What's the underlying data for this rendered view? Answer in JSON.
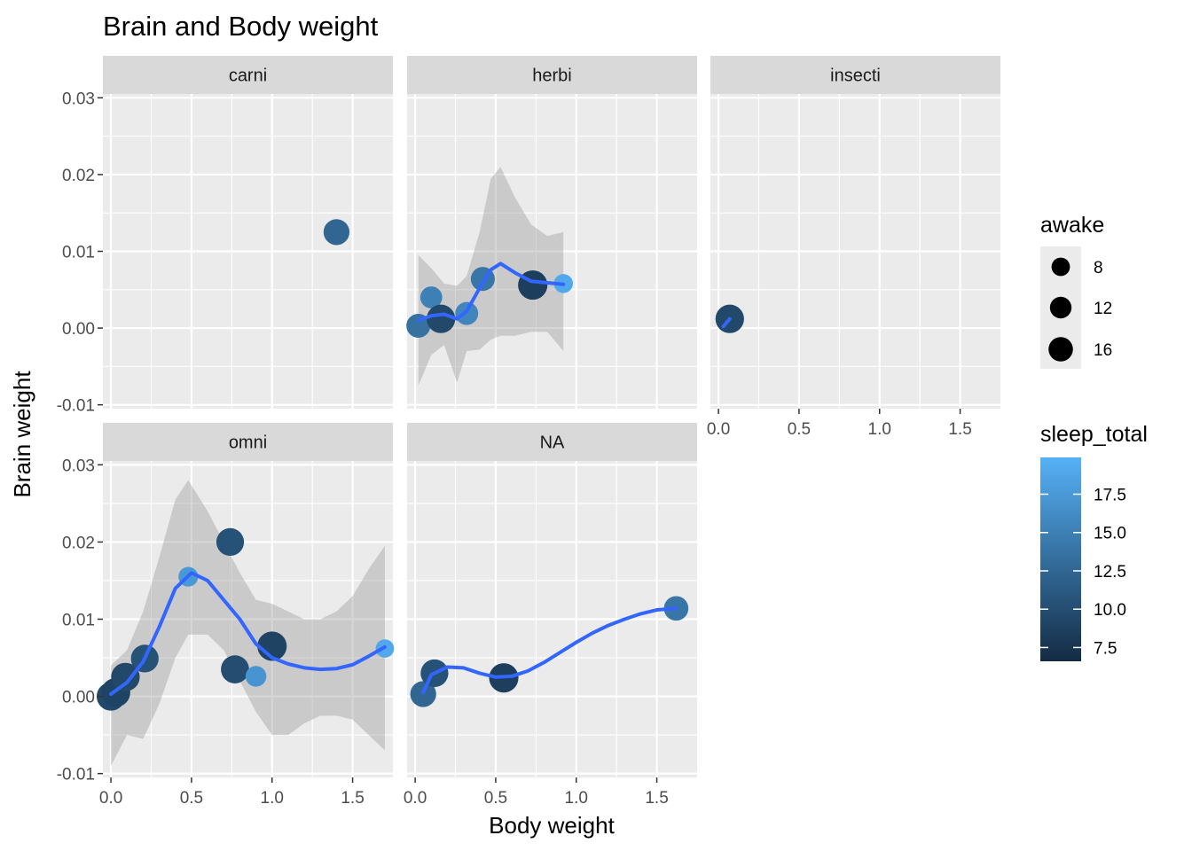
{
  "chart_data": {
    "type": "scatter",
    "title": "Brain and Body weight",
    "xlabel": "Body weight",
    "ylabel": "Brain weight",
    "xlim": [
      -0.05,
      1.75
    ],
    "ylim": [
      -0.0105,
      0.0305
    ],
    "x_ticks": [
      0.0,
      0.5,
      1.0,
      1.5
    ],
    "x_tick_labels": [
      "0.0",
      "0.5",
      "1.0",
      "1.5"
    ],
    "y_ticks": [
      -0.01,
      0.0,
      0.01,
      0.02,
      0.03
    ],
    "y_tick_labels": [
      "-0.01",
      "0.00",
      "0.01",
      "0.02",
      "0.03"
    ],
    "grid": true,
    "legend_position": "right",
    "facets": [
      {
        "label": "carni",
        "points": [
          {
            "x": 1.4,
            "y": 0.0125,
            "awake": 11.5,
            "sleep_total": 12.5
          }
        ],
        "smooth": [],
        "band": []
      },
      {
        "label": "herbi",
        "points": [
          {
            "x": 0.02,
            "y": 0.0003,
            "awake": 9.5,
            "sleep_total": 13.5
          },
          {
            "x": 0.1,
            "y": 0.004,
            "awake": 7.5,
            "sleep_total": 15.0
          },
          {
            "x": 0.16,
            "y": 0.0012,
            "awake": 14.5,
            "sleep_total": 9.5
          },
          {
            "x": 0.32,
            "y": 0.0019,
            "awake": 8.5,
            "sleep_total": 15.5
          },
          {
            "x": 0.42,
            "y": 0.0064,
            "awake": 9.5,
            "sleep_total": 14.0
          },
          {
            "x": 0.73,
            "y": 0.0056,
            "awake": 15.5,
            "sleep_total": 8.5
          },
          {
            "x": 0.92,
            "y": 0.0058,
            "awake": 5.0,
            "sleep_total": 19.0
          }
        ],
        "smooth": [
          [
            0.02,
            0.001
          ],
          [
            0.1,
            0.0016
          ],
          [
            0.18,
            0.0018
          ],
          [
            0.26,
            0.0012
          ],
          [
            0.32,
            0.0022
          ],
          [
            0.4,
            0.0052
          ],
          [
            0.47,
            0.0076
          ],
          [
            0.53,
            0.0084
          ],
          [
            0.62,
            0.0072
          ],
          [
            0.72,
            0.0061
          ],
          [
            0.82,
            0.0059
          ],
          [
            0.92,
            0.0057
          ]
        ],
        "band": [
          [
            0.02,
            0.0095,
            -0.0075
          ],
          [
            0.1,
            0.0078,
            -0.0035
          ],
          [
            0.18,
            0.0058,
            -0.0022
          ],
          [
            0.26,
            0.0055,
            -0.0071
          ],
          [
            0.32,
            0.0068,
            -0.003
          ],
          [
            0.4,
            0.0125,
            -0.0028
          ],
          [
            0.47,
            0.0195,
            -0.0015
          ],
          [
            0.53,
            0.021,
            -0.001
          ],
          [
            0.62,
            0.017,
            -0.001
          ],
          [
            0.72,
            0.0135,
            -0.0005
          ],
          [
            0.82,
            0.012,
            -0.0005
          ],
          [
            0.92,
            0.0125,
            -0.003
          ]
        ]
      },
      {
        "label": "insecti",
        "points": [
          {
            "x": 0.07,
            "y": 0.0012,
            "awake": 14.5,
            "sleep_total": 9.5
          }
        ],
        "smooth": [
          [
            0.03,
            0.0002
          ],
          [
            0.07,
            0.0012
          ]
        ],
        "band": []
      },
      {
        "label": "omni",
        "points": [
          {
            "x": 0.0,
            "y": 0.0,
            "awake": 14.5,
            "sleep_total": 9.5
          },
          {
            "x": 0.03,
            "y": 0.0005,
            "awake": 15.0,
            "sleep_total": 9.0
          },
          {
            "x": 0.09,
            "y": 0.0025,
            "awake": 14.5,
            "sleep_total": 9.5
          },
          {
            "x": 0.21,
            "y": 0.0049,
            "awake": 13.5,
            "sleep_total": 10.5
          },
          {
            "x": 0.48,
            "y": 0.0155,
            "awake": 5.5,
            "sleep_total": 17.5
          },
          {
            "x": 0.74,
            "y": 0.02,
            "awake": 13.5,
            "sleep_total": 10.5
          },
          {
            "x": 0.77,
            "y": 0.0035,
            "awake": 14.0,
            "sleep_total": 10.0
          },
          {
            "x": 0.9,
            "y": 0.0026,
            "awake": 6.5,
            "sleep_total": 17.0
          },
          {
            "x": 1.0,
            "y": 0.0065,
            "awake": 15.5,
            "sleep_total": 9.0
          },
          {
            "x": 1.7,
            "y": 0.0062,
            "awake": 4.5,
            "sleep_total": 19.0
          }
        ],
        "smooth": [
          [
            0.0,
            0.0003
          ],
          [
            0.1,
            0.0018
          ],
          [
            0.2,
            0.0045
          ],
          [
            0.3,
            0.009
          ],
          [
            0.4,
            0.014
          ],
          [
            0.5,
            0.016
          ],
          [
            0.6,
            0.015
          ],
          [
            0.7,
            0.0125
          ],
          [
            0.8,
            0.01
          ],
          [
            0.9,
            0.0068
          ],
          [
            1.0,
            0.005
          ],
          [
            1.1,
            0.0042
          ],
          [
            1.2,
            0.0037
          ],
          [
            1.3,
            0.0035
          ],
          [
            1.4,
            0.0036
          ],
          [
            1.5,
            0.0041
          ],
          [
            1.6,
            0.0052
          ],
          [
            1.7,
            0.0064
          ]
        ],
        "band": [
          [
            0.0,
            0.004,
            -0.009
          ],
          [
            0.1,
            0.006,
            -0.005
          ],
          [
            0.2,
            0.011,
            -0.0055
          ],
          [
            0.3,
            0.018,
            -0.001
          ],
          [
            0.4,
            0.0255,
            0.005
          ],
          [
            0.48,
            0.028,
            0.008
          ],
          [
            0.6,
            0.024,
            0.008
          ],
          [
            0.7,
            0.02,
            0.006
          ],
          [
            0.8,
            0.016,
            0.002
          ],
          [
            0.9,
            0.0125,
            -0.002
          ],
          [
            1.0,
            0.012,
            -0.005
          ],
          [
            1.1,
            0.011,
            -0.005
          ],
          [
            1.2,
            0.01,
            -0.0035
          ],
          [
            1.3,
            0.01,
            -0.0025
          ],
          [
            1.4,
            0.011,
            -0.0025
          ],
          [
            1.5,
            0.013,
            -0.003
          ],
          [
            1.6,
            0.0165,
            -0.005
          ],
          [
            1.7,
            0.0195,
            -0.007
          ]
        ]
      },
      {
        "label": "NA",
        "points": [
          {
            "x": 0.05,
            "y": 0.0003,
            "awake": 11.5,
            "sleep_total": 12.5
          },
          {
            "x": 0.12,
            "y": 0.003,
            "awake": 13.5,
            "sleep_total": 10.5
          },
          {
            "x": 0.55,
            "y": 0.0024,
            "awake": 15.5,
            "sleep_total": 8.5
          },
          {
            "x": 1.62,
            "y": 0.0114,
            "awake": 10.0,
            "sleep_total": 14.0
          }
        ],
        "smooth": [
          [
            0.05,
            0.0005
          ],
          [
            0.1,
            0.0028
          ],
          [
            0.2,
            0.0038
          ],
          [
            0.3,
            0.0037
          ],
          [
            0.4,
            0.003
          ],
          [
            0.5,
            0.0025
          ],
          [
            0.6,
            0.0026
          ],
          [
            0.7,
            0.0033
          ],
          [
            0.8,
            0.0044
          ],
          [
            0.9,
            0.0057
          ],
          [
            1.0,
            0.007
          ],
          [
            1.1,
            0.0082
          ],
          [
            1.2,
            0.0092
          ],
          [
            1.3,
            0.01
          ],
          [
            1.4,
            0.0107
          ],
          [
            1.5,
            0.0112
          ],
          [
            1.62,
            0.0114
          ]
        ],
        "band": []
      }
    ],
    "legend_size": {
      "title": "awake",
      "entries": [
        {
          "label": "8",
          "value": 8
        },
        {
          "label": "12",
          "value": 12
        },
        {
          "label": "16",
          "value": 16
        }
      ]
    },
    "legend_color": {
      "title": "sleep_total",
      "low_color": "#132b43",
      "high_color": "#56b1f7",
      "range": [
        6.6,
        19.9
      ],
      "ticks": [
        7.5,
        10.0,
        12.5,
        15.0,
        17.5
      ],
      "tick_labels": [
        "7.5",
        "10.0",
        "12.5",
        "15.0",
        "17.5"
      ]
    }
  },
  "colors": {
    "panel_background": "#ebebeb",
    "strip_background": "#d9d9d9",
    "grid_major": "#ffffff",
    "smooth_line": "#3366ff",
    "band_fill": "#999999"
  }
}
